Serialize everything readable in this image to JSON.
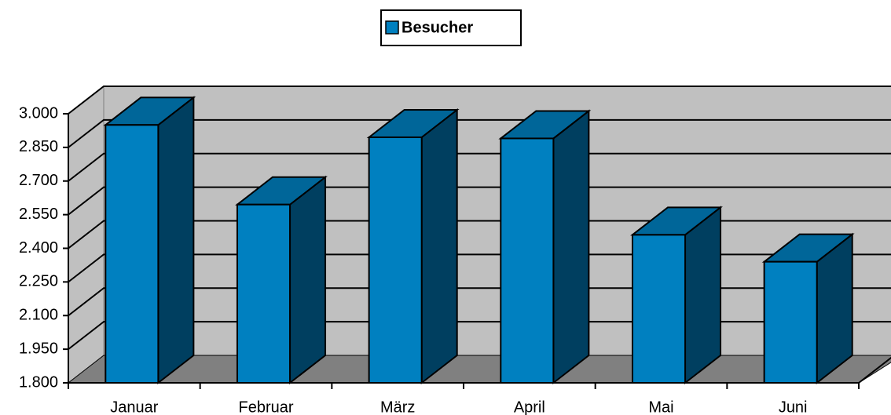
{
  "chart_data": {
    "type": "bar3d",
    "categories": [
      "Januar",
      "Februar",
      "März",
      "April",
      "Mai",
      "Juni"
    ],
    "series": [
      {
        "name": "Besucher",
        "color": "#0080c0",
        "values": [
          2950,
          2595,
          2895,
          2890,
          2460,
          2340
        ]
      }
    ],
    "ylim": [
      1800,
      3000
    ],
    "yticks": [
      {
        "value": 1800,
        "label": "1.800"
      },
      {
        "value": 1950,
        "label": "1.950"
      },
      {
        "value": 2100,
        "label": "2.100"
      },
      {
        "value": 2250,
        "label": "2.250"
      },
      {
        "value": 2400,
        "label": "2.400"
      },
      {
        "value": 2550,
        "label": "2.550"
      },
      {
        "value": 2700,
        "label": "2.700"
      },
      {
        "value": 2850,
        "label": "2.850"
      },
      {
        "value": 3000,
        "label": "3.000"
      }
    ],
    "grid": true,
    "legend": "top"
  }
}
